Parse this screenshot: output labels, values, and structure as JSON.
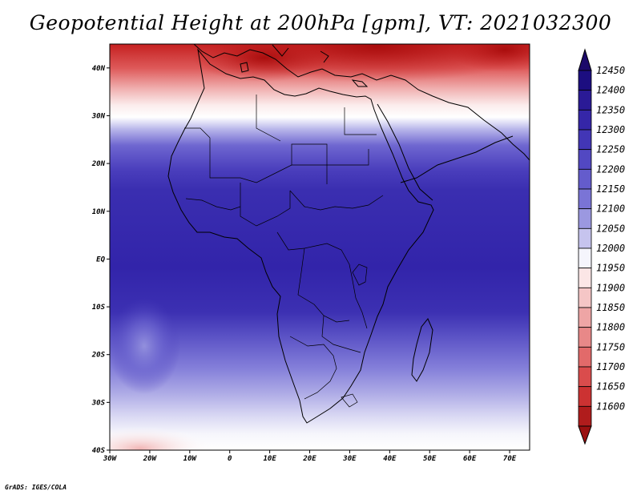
{
  "title": "Geopotential Height at 200hPa [gpm], VT: 2021032300",
  "credit": "GrADS: IGES/COLA",
  "map": {
    "lon_range": [
      -30,
      75
    ],
    "lat_range": [
      -40,
      45
    ],
    "lat_ticks": [
      {
        "value": 40,
        "label": "40N"
      },
      {
        "value": 30,
        "label": "30N"
      },
      {
        "value": 20,
        "label": "20N"
      },
      {
        "value": 10,
        "label": "10N"
      },
      {
        "value": 0,
        "label": "EQ"
      },
      {
        "value": -10,
        "label": "10S"
      },
      {
        "value": -20,
        "label": "20S"
      },
      {
        "value": -30,
        "label": "30S"
      },
      {
        "value": -40,
        "label": "40S"
      }
    ],
    "lon_ticks": [
      {
        "value": -30,
        "label": "30W"
      },
      {
        "value": -20,
        "label": "20W"
      },
      {
        "value": -10,
        "label": "10W"
      },
      {
        "value": 0,
        "label": "0"
      },
      {
        "value": 10,
        "label": "10E"
      },
      {
        "value": 20,
        "label": "20E"
      },
      {
        "value": 30,
        "label": "30E"
      },
      {
        "value": 40,
        "label": "40E"
      },
      {
        "value": 50,
        "label": "50E"
      },
      {
        "value": 60,
        "label": "60E"
      },
      {
        "value": 70,
        "label": "70E"
      }
    ]
  },
  "colorbar": {
    "levels": [
      {
        "value": "12450",
        "color": "#1c0e80"
      },
      {
        "value": "12400",
        "color": "#2a1a96"
      },
      {
        "value": "12350",
        "color": "#3526a8"
      },
      {
        "value": "12300",
        "color": "#4236b6"
      },
      {
        "value": "12250",
        "color": "#5248c2"
      },
      {
        "value": "12200",
        "color": "#645ccc"
      },
      {
        "value": "12150",
        "color": "#7a74d6"
      },
      {
        "value": "12100",
        "color": "#9b98e0"
      },
      {
        "value": "12050",
        "color": "#c6c4ee"
      },
      {
        "value": "12000",
        "color": "#f5f5fc"
      },
      {
        "value": "11950",
        "color": "#fbe6e6"
      },
      {
        "value": "11900",
        "color": "#f5c6c6"
      },
      {
        "value": "11850",
        "color": "#eea5a5"
      },
      {
        "value": "11800",
        "color": "#e88888"
      },
      {
        "value": "11750",
        "color": "#e26a6a"
      },
      {
        "value": "11700",
        "color": "#da4c4c"
      },
      {
        "value": "11650",
        "color": "#cc3232"
      },
      {
        "value": "11600",
        "color": "#b01c1c"
      }
    ],
    "top_arrow_color": "#1c0a6a",
    "bottom_arrow_color": "#9a1010"
  }
}
